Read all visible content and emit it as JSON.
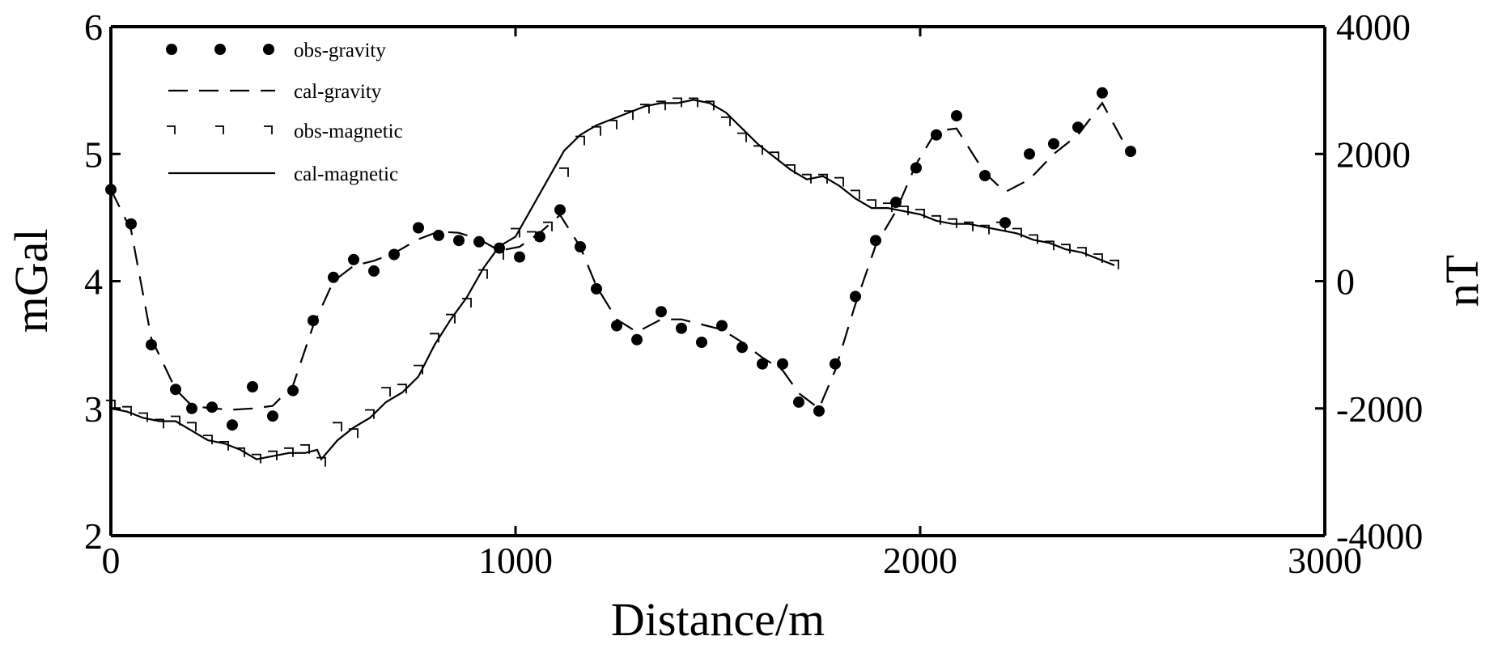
{
  "chart_data": {
    "type": "line",
    "title": "",
    "xlabel": "Distance/m",
    "ylabel_left": "mGal",
    "ylabel_right": "nT",
    "xlim": [
      0,
      3000
    ],
    "ylim_left": [
      2,
      6
    ],
    "ylim_right": [
      -4000,
      4000
    ],
    "x_ticks": [
      "0",
      "1000",
      "2000",
      "3000"
    ],
    "y_left_ticks": [
      "2",
      "3",
      "4",
      "5",
      "6"
    ],
    "y_right_ticks": [
      "-4000",
      "-2000",
      "0",
      "2000",
      "4000"
    ],
    "grid": false,
    "legend_position": "top-left",
    "series": [
      {
        "name": "obs-gravity",
        "axis": "left",
        "style": "dots",
        "x": [
          0,
          50,
          100,
          160,
          200,
          250,
          300,
          350,
          400,
          450,
          500,
          550,
          600,
          650,
          700,
          760,
          810,
          860,
          910,
          960,
          1010,
          1060,
          1110,
          1160,
          1200,
          1250,
          1300,
          1360,
          1410,
          1460,
          1510,
          1560,
          1610,
          1660,
          1700,
          1750,
          1790,
          1840,
          1890,
          1940,
          1990,
          2040,
          2090,
          2160,
          2210,
          2270,
          2330,
          2390,
          2450,
          2520
        ],
        "values": [
          4.72,
          4.45,
          3.5,
          3.15,
          3.0,
          3.01,
          2.87,
          3.17,
          2.94,
          3.14,
          3.69,
          4.03,
          4.17,
          4.08,
          4.21,
          4.42,
          4.36,
          4.32,
          4.31,
          4.26,
          4.19,
          4.35,
          4.56,
          4.27,
          3.94,
          3.65,
          3.54,
          3.76,
          3.63,
          3.52,
          3.65,
          3.48,
          3.35,
          3.35,
          3.05,
          2.98,
          3.35,
          3.88,
          4.32,
          4.62,
          4.89,
          5.15,
          5.3,
          4.83,
          4.46,
          5.0,
          5.08,
          5.21,
          5.48,
          5.02
        ]
      },
      {
        "name": "cal-gravity",
        "axis": "left",
        "style": "dashed",
        "x": [
          0,
          50,
          100,
          160,
          200,
          250,
          300,
          350,
          400,
          450,
          500,
          550,
          600,
          650,
          700,
          760,
          810,
          860,
          910,
          960,
          1010,
          1060,
          1110,
          1160,
          1200,
          1250,
          1300,
          1360,
          1410,
          1460,
          1510,
          1560,
          1610,
          1660,
          1700,
          1750,
          1790,
          1840,
          1890,
          1940,
          1990,
          2040,
          2090,
          2160,
          2210,
          2270,
          2330,
          2390,
          2450,
          2520
        ],
        "values": [
          4.72,
          4.4,
          3.55,
          3.15,
          3.02,
          3.0,
          2.99,
          3.0,
          3.02,
          3.18,
          3.65,
          4.0,
          4.12,
          4.16,
          4.22,
          4.33,
          4.39,
          4.38,
          4.33,
          4.24,
          4.27,
          4.38,
          4.52,
          4.27,
          3.96,
          3.7,
          3.6,
          3.7,
          3.7,
          3.66,
          3.62,
          3.52,
          3.4,
          3.3,
          3.12,
          3.0,
          3.3,
          3.82,
          4.28,
          4.55,
          4.92,
          5.18,
          5.2,
          4.85,
          4.7,
          4.8,
          5.0,
          5.15,
          5.4,
          4.99
        ]
      },
      {
        "name": "obs-magnetic",
        "axis": "right",
        "style": "markers",
        "x": [
          0,
          40,
          80,
          120,
          160,
          200,
          240,
          280,
          320,
          360,
          400,
          440,
          480,
          520,
          560,
          600,
          640,
          680,
          720,
          760,
          800,
          840,
          880,
          920,
          960,
          1000,
          1040,
          1080,
          1120,
          1160,
          1200,
          1240,
          1280,
          1320,
          1360,
          1400,
          1440,
          1480,
          1520,
          1560,
          1600,
          1640,
          1680,
          1720,
          1760,
          1800,
          1840,
          1880,
          1920,
          1960,
          2000,
          2040,
          2080,
          2120,
          2160,
          2200,
          2240,
          2280,
          2320,
          2360,
          2400,
          2440,
          2480
        ],
        "values": [
          -1950,
          -2050,
          -2150,
          -2250,
          -2200,
          -2300,
          -2500,
          -2600,
          -2700,
          -2800,
          -2750,
          -2700,
          -2650,
          -2850,
          -2300,
          -2400,
          -2100,
          -1750,
          -1700,
          -1400,
          -900,
          -600,
          -350,
          100,
          400,
          750,
          700,
          850,
          1700,
          2200,
          2350,
          2450,
          2600,
          2700,
          2750,
          2800,
          2800,
          2750,
          2500,
          2250,
          2050,
          1950,
          1750,
          1600,
          1600,
          1550,
          1350,
          1200,
          1150,
          1100,
          1050,
          950,
          900,
          850,
          800,
          850,
          750,
          650,
          550,
          500,
          450,
          350,
          250
        ]
      },
      {
        "name": "cal-magnetic",
        "axis": "right",
        "style": "solid",
        "x": [
          0,
          40,
          80,
          120,
          160,
          200,
          240,
          280,
          320,
          360,
          400,
          440,
          480,
          510,
          520,
          560,
          600,
          640,
          680,
          720,
          760,
          800,
          840,
          880,
          920,
          960,
          1000,
          1040,
          1080,
          1120,
          1160,
          1200,
          1240,
          1280,
          1320,
          1360,
          1400,
          1440,
          1480,
          1520,
          1560,
          1600,
          1640,
          1680,
          1720,
          1760,
          1800,
          1840,
          1880,
          1920,
          1960,
          2000,
          2040,
          2080,
          2120,
          2160,
          2200,
          2240,
          2280,
          2320,
          2360,
          2400,
          2440,
          2480
        ],
        "values": [
          -2000,
          -2050,
          -2150,
          -2200,
          -2200,
          -2350,
          -2500,
          -2550,
          -2650,
          -2800,
          -2750,
          -2700,
          -2700,
          -2650,
          -2800,
          -2500,
          -2300,
          -2150,
          -1900,
          -1750,
          -1500,
          -1000,
          -600,
          -250,
          200,
          550,
          700,
          1150,
          1600,
          2050,
          2300,
          2450,
          2550,
          2650,
          2750,
          2800,
          2800,
          2850,
          2800,
          2650,
          2400,
          2150,
          1950,
          1750,
          1600,
          1650,
          1500,
          1300,
          1150,
          1150,
          1100,
          1050,
          950,
          900,
          900,
          850,
          800,
          750,
          650,
          600,
          500,
          450,
          350,
          250
        ]
      }
    ]
  }
}
